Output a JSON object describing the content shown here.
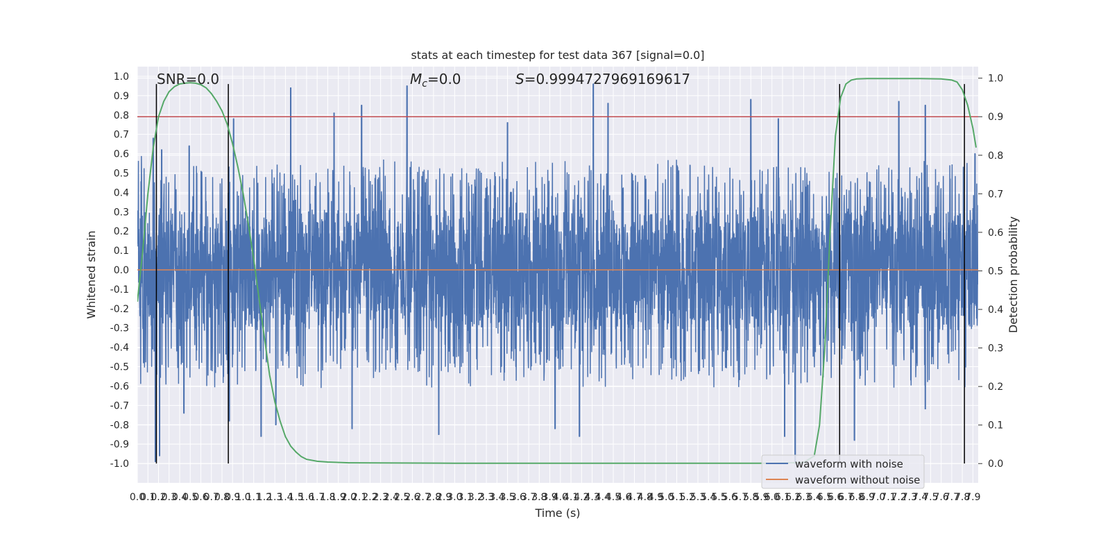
{
  "chart_data": {
    "type": "line",
    "title": "stats at each timestep for test data 367 [signal=0.0]",
    "xlabel": "Time (s)",
    "ylabel_left": "Whitened strain",
    "ylabel_right": "Detection probability",
    "xlim": [
      0,
      7.95
    ],
    "ylim_left": [
      -1.1,
      1.05
    ],
    "ylim_right": [
      -0.05,
      1.03
    ],
    "x_ticks": [
      0.0,
      0.1,
      0.2,
      0.3,
      0.4,
      0.5,
      0.6,
      0.7,
      0.8,
      0.9,
      1.0,
      1.1,
      1.2,
      1.3,
      1.4,
      1.5,
      1.6,
      1.7,
      1.8,
      1.9,
      2.0,
      2.1,
      2.2,
      2.3,
      2.4,
      2.5,
      2.6,
      2.7,
      2.8,
      2.9,
      3.0,
      3.1,
      3.2,
      3.3,
      3.4,
      3.5,
      3.6,
      3.7,
      3.8,
      3.9,
      4.0,
      4.1,
      4.2,
      4.3,
      4.4,
      4.5,
      4.6,
      4.7,
      4.8,
      4.9,
      5.0,
      5.1,
      5.2,
      5.3,
      5.4,
      5.5,
      5.6,
      5.7,
      5.8,
      5.9,
      6.0,
      6.1,
      6.2,
      6.3,
      6.4,
      6.5,
      6.6,
      6.7,
      6.8,
      6.9,
      7.0,
      7.1,
      7.2,
      7.3,
      7.4,
      7.5,
      7.6,
      7.7,
      7.8,
      7.9
    ],
    "y_ticks_left": [
      1.0,
      0.9,
      0.8,
      0.7,
      0.6,
      0.5,
      0.4,
      0.3,
      0.2,
      0.1,
      0.0,
      -0.1,
      -0.2,
      -0.3,
      -0.4,
      -0.5,
      -0.6,
      -0.7,
      -0.8,
      -0.9,
      -1.0
    ],
    "y_ticks_right": [
      1.0,
      0.9,
      0.8,
      0.7,
      0.6,
      0.5,
      0.4,
      0.3,
      0.2,
      0.1,
      0.0
    ],
    "grid": true,
    "legend_placement": "lower-right",
    "legend": [
      {
        "label": "waveform with noise",
        "color": "#4c72b0"
      },
      {
        "label": "waveform without noise",
        "color": "#dd8452"
      }
    ],
    "annotations": [
      {
        "text": "SNR=0.0",
        "x": 0.18,
        "y": 1.01
      },
      {
        "text_prefix": "M",
        "text_sub": "c",
        "text_suffix": "=0.0",
        "x": 2.58,
        "y": 1.01
      },
      {
        "text_prefix": "S",
        "text_suffix": "=0.9994727969169617",
        "x": 3.58,
        "y": 1.01
      }
    ],
    "threshold_line": {
      "axis": "right",
      "y": 0.9,
      "color": "#c44e52"
    },
    "vertical_markers": {
      "x": [
        0.18,
        0.86,
        6.64,
        7.82
      ],
      "y_range": [
        -1.0,
        0.96
      ],
      "color": "#000000"
    },
    "series": [
      {
        "name": "waveform with noise",
        "color": "#4c72b0",
        "axis": "left",
        "kind": "noise_band",
        "band_upper": 0.37,
        "band_lower": -0.41,
        "x_range": [
          0,
          7.95
        ],
        "peaks": [
          [
            0.15,
            0.68
          ],
          [
            0.23,
            0.62
          ],
          [
            0.49,
            0.64
          ],
          [
            0.91,
            0.78
          ],
          [
            1.45,
            0.94
          ],
          [
            1.86,
            0.81
          ],
          [
            2.12,
            0.85
          ],
          [
            2.55,
            0.95
          ],
          [
            3.5,
            0.76
          ],
          [
            4.31,
            0.96
          ],
          [
            4.45,
            0.86
          ],
          [
            5.8,
            0.88
          ],
          [
            6.06,
            0.78
          ],
          [
            7.2,
            0.87
          ],
          [
            7.45,
            0.85
          ],
          [
            7.92,
            0.6
          ]
        ],
        "troughs": [
          [
            0.17,
            -0.99
          ],
          [
            0.21,
            -0.96
          ],
          [
            0.44,
            -0.74
          ],
          [
            0.87,
            -0.78
          ],
          [
            1.17,
            -0.86
          ],
          [
            1.31,
            -0.8
          ],
          [
            2.03,
            -0.82
          ],
          [
            2.85,
            -0.85
          ],
          [
            3.95,
            -0.82
          ],
          [
            4.18,
            -0.86
          ],
          [
            6.12,
            -0.86
          ],
          [
            6.22,
            -1.0
          ],
          [
            6.78,
            -0.88
          ],
          [
            7.45,
            -0.72
          ]
        ]
      },
      {
        "name": "waveform without noise",
        "color": "#dd8452",
        "axis": "left",
        "x": [
          0,
          7.95
        ],
        "y": [
          0.0,
          0.0
        ]
      },
      {
        "color": "#55a868",
        "axis": "right",
        "x": [
          0.0,
          0.05,
          0.1,
          0.15,
          0.2,
          0.25,
          0.3,
          0.35,
          0.4,
          0.45,
          0.5,
          0.55,
          0.6,
          0.65,
          0.7,
          0.75,
          0.8,
          0.85,
          0.9,
          0.95,
          1.0,
          1.05,
          1.1,
          1.15,
          1.2,
          1.25,
          1.3,
          1.35,
          1.4,
          1.45,
          1.5,
          1.55,
          1.6,
          1.7,
          1.8,
          2.0,
          3.0,
          4.0,
          5.0,
          5.5,
          6.0,
          6.3,
          6.4,
          6.45,
          6.5,
          6.55,
          6.6,
          6.65,
          6.7,
          6.75,
          6.8,
          6.9,
          7.0,
          7.2,
          7.4,
          7.6,
          7.7,
          7.75,
          7.8,
          7.85,
          7.9,
          7.93
        ],
        "y": [
          0.42,
          0.55,
          0.7,
          0.82,
          0.9,
          0.94,
          0.965,
          0.978,
          0.985,
          0.987,
          0.988,
          0.987,
          0.983,
          0.975,
          0.96,
          0.94,
          0.915,
          0.88,
          0.83,
          0.77,
          0.7,
          0.62,
          0.53,
          0.43,
          0.33,
          0.23,
          0.16,
          0.11,
          0.07,
          0.045,
          0.03,
          0.018,
          0.011,
          0.006,
          0.004,
          0.002,
          0.001,
          0.001,
          0.001,
          0.001,
          0.001,
          0.003,
          0.02,
          0.1,
          0.3,
          0.6,
          0.85,
          0.95,
          0.985,
          0.995,
          0.998,
          0.999,
          0.999,
          0.999,
          0.999,
          0.998,
          0.995,
          0.99,
          0.97,
          0.93,
          0.87,
          0.82
        ]
      }
    ]
  }
}
